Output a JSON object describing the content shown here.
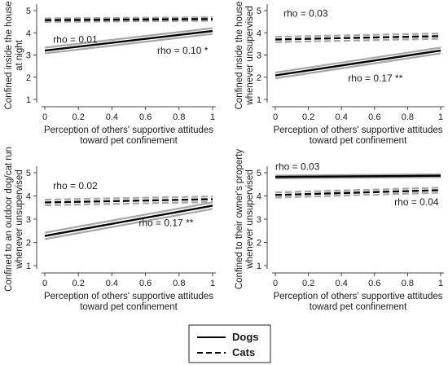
{
  "legend": {
    "entries": [
      {
        "label": "Dogs",
        "style": "solid"
      },
      {
        "label": "Cats",
        "style": "dashed"
      }
    ]
  },
  "colors": {
    "line": "#000000",
    "ci_band": "#a6a6a6",
    "axis": "#444444",
    "background": "#ffffff"
  },
  "chart_data": [
    {
      "type": "line",
      "xlabel": [
        "Perception of others' supportive attitudes",
        "toward pet confinement"
      ],
      "ylabel": [
        "Confined inside the house",
        "at night"
      ],
      "xlim": [
        0,
        1
      ],
      "ylim": [
        1,
        5
      ],
      "xticks": [
        "0",
        "0.2",
        "0.4",
        "0.6",
        "0.8",
        "1"
      ],
      "yticks": [
        "1",
        "2",
        "3",
        "4",
        "5"
      ],
      "grid": false,
      "series": [
        {
          "name": "Dogs",
          "style": "solid",
          "x": [
            0,
            1
          ],
          "y": [
            3.2,
            4.08
          ],
          "ci_halfwidth": 0.13
        },
        {
          "name": "Cats",
          "style": "dashed",
          "x": [
            0,
            1
          ],
          "y": [
            4.57,
            4.62
          ],
          "ci_halfwidth": 0.08
        }
      ],
      "annotations": [
        {
          "text": "rho = 0.01",
          "at": [
            0.05,
            3.55
          ]
        },
        {
          "text": "rho = 0.10 *",
          "at": [
            0.67,
            3.05
          ]
        }
      ]
    },
    {
      "type": "line",
      "xlabel": [
        "Perception of others' supportive attitudes",
        "toward pet confinement"
      ],
      "ylabel": [
        "Confined inside the house",
        "whenever unsupervised"
      ],
      "xlim": [
        0,
        1
      ],
      "ylim": [
        1,
        5
      ],
      "xticks": [
        "0",
        "0.2",
        "0.4",
        "0.6",
        "0.8",
        "1"
      ],
      "yticks": [
        "1",
        "2",
        "3",
        "4",
        "5"
      ],
      "grid": false,
      "series": [
        {
          "name": "Dogs",
          "style": "solid",
          "x": [
            0,
            1
          ],
          "y": [
            2.08,
            3.2
          ],
          "ci_halfwidth": 0.13
        },
        {
          "name": "Cats",
          "style": "dashed",
          "x": [
            0,
            1
          ],
          "y": [
            3.7,
            3.85
          ],
          "ci_halfwidth": 0.12
        }
      ],
      "annotations": [
        {
          "text": "rho = 0.03",
          "at": [
            0.05,
            4.72
          ]
        },
        {
          "text": "rho = 0.17 **",
          "at": [
            0.44,
            1.8
          ]
        }
      ]
    },
    {
      "type": "line",
      "xlabel": [
        "Perception of others' supportive attitudes",
        "toward pet confinement"
      ],
      "ylabel": [
        "Confined to an outdoor dog/cat run",
        "whenever unsupervised"
      ],
      "xlim": [
        0,
        1
      ],
      "ylim": [
        1,
        5
      ],
      "xticks": [
        "0",
        "0.2",
        "0.4",
        "0.6",
        "0.8",
        "1"
      ],
      "yticks": [
        "1",
        "2",
        "3",
        "4",
        "5"
      ],
      "grid": false,
      "series": [
        {
          "name": "Dogs",
          "style": "solid",
          "x": [
            0,
            1
          ],
          "y": [
            2.28,
            3.58
          ],
          "ci_halfwidth": 0.14
        },
        {
          "name": "Cats",
          "style": "dashed",
          "x": [
            0,
            1
          ],
          "y": [
            3.72,
            3.86
          ],
          "ci_halfwidth": 0.12
        }
      ],
      "annotations": [
        {
          "text": "rho = 0.02",
          "at": [
            0.05,
            4.3
          ]
        },
        {
          "text": "rho = 0.17 **",
          "at": [
            0.56,
            2.7
          ]
        }
      ]
    },
    {
      "type": "line",
      "xlabel": [
        "Perception of others' supportive attitudes",
        "toward pet confinement"
      ],
      "ylabel": [
        "Confined to their owner's property",
        "whenever unsupervised"
      ],
      "xlim": [
        0,
        1
      ],
      "ylim": [
        1,
        5
      ],
      "xticks": [
        "0",
        "0.2",
        "0.4",
        "0.6",
        "0.8",
        "1"
      ],
      "yticks": [
        "1",
        "2",
        "3",
        "4",
        "5"
      ],
      "grid": false,
      "series": [
        {
          "name": "Dogs",
          "style": "solid",
          "x": [
            0,
            1
          ],
          "y": [
            4.82,
            4.87
          ],
          "ci_halfwidth": 0.06
        },
        {
          "name": "Cats",
          "style": "dashed",
          "x": [
            0,
            1
          ],
          "y": [
            4.04,
            4.25
          ],
          "ci_halfwidth": 0.11
        }
      ],
      "annotations": [
        {
          "text": "rho = 0.03",
          "at": [
            0.0,
            5.12
          ]
        },
        {
          "text": "rho = 0.04",
          "at": [
            0.72,
            3.6
          ]
        }
      ]
    }
  ]
}
